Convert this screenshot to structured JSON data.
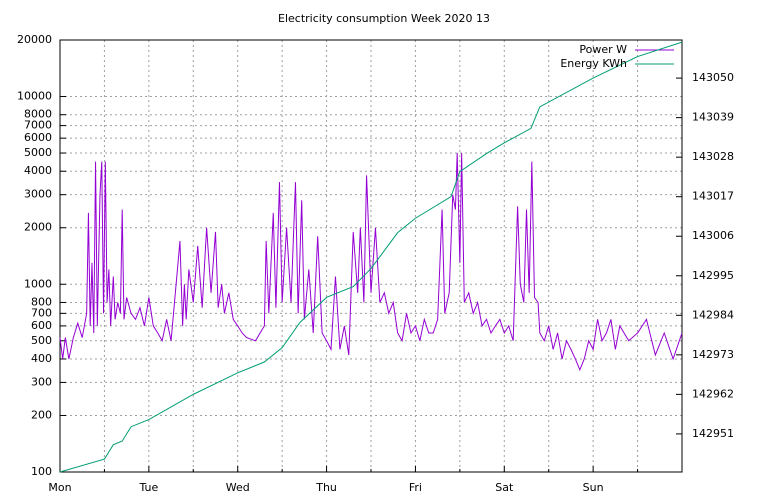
{
  "chart_data": {
    "type": "line",
    "title": "Electricity consumption Week 2020 13",
    "xlim": [
      0,
      7
    ],
    "xticks": [
      {
        "value": 0,
        "label": "Mon"
      },
      {
        "value": 1,
        "label": "Tue"
      },
      {
        "value": 2,
        "label": "Wed"
      },
      {
        "value": 3,
        "label": "Thu"
      },
      {
        "value": 4,
        "label": "Fri"
      },
      {
        "value": 5,
        "label": "Sat"
      },
      {
        "value": 6,
        "label": "Sun"
      }
    ],
    "xminor": 2,
    "ylim": [
      100,
      20000
    ],
    "ylog": true,
    "yticks": [
      100,
      200,
      300,
      400,
      500,
      600,
      700,
      800,
      1000,
      2000,
      3000,
      4000,
      5000,
      6000,
      7000,
      8000,
      10000,
      20000
    ],
    "y2lim": [
      142940.4,
      143060.6
    ],
    "y2ticks": [
      142951,
      142962,
      142973,
      142984,
      142995,
      143006,
      143017,
      143028,
      143039,
      143050
    ],
    "grid": true,
    "legend": "top-right",
    "series": [
      {
        "name": "Power W",
        "color": "#9400d3",
        "x": [
          0,
          0.03,
          0.06,
          0.1,
          0.15,
          0.2,
          0.25,
          0.3,
          0.32,
          0.34,
          0.36,
          0.38,
          0.4,
          0.42,
          0.45,
          0.47,
          0.49,
          0.51,
          0.53,
          0.55,
          0.57,
          0.6,
          0.62,
          0.65,
          0.68,
          0.7,
          0.72,
          0.75,
          0.8,
          0.85,
          0.9,
          0.95,
          1.0,
          1.05,
          1.1,
          1.15,
          1.2,
          1.25,
          1.35,
          1.38,
          1.4,
          1.42,
          1.45,
          1.5,
          1.55,
          1.6,
          1.65,
          1.7,
          1.75,
          1.78,
          1.82,
          1.85,
          1.9,
          1.95,
          2.0,
          2.05,
          2.1,
          2.2,
          2.3,
          2.32,
          2.35,
          2.4,
          2.43,
          2.47,
          2.5,
          2.55,
          2.6,
          2.65,
          2.68,
          2.72,
          2.75,
          2.8,
          2.85,
          2.9,
          2.95,
          3.0,
          3.05,
          3.1,
          3.15,
          3.2,
          3.25,
          3.3,
          3.35,
          3.38,
          3.42,
          3.45,
          3.5,
          3.55,
          3.6,
          3.65,
          3.7,
          3.75,
          3.8,
          3.85,
          3.9,
          3.95,
          4.0,
          4.05,
          4.1,
          4.15,
          4.2,
          4.25,
          4.3,
          4.33,
          4.38,
          4.42,
          4.45,
          4.47,
          4.5,
          4.52,
          4.55,
          4.6,
          4.65,
          4.7,
          4.75,
          4.8,
          4.85,
          4.9,
          4.95,
          5.0,
          5.05,
          5.1,
          5.15,
          5.18,
          5.22,
          5.25,
          5.28,
          5.31,
          5.34,
          5.38,
          5.4,
          5.45,
          5.5,
          5.55,
          5.6,
          5.65,
          5.7,
          5.75,
          5.8,
          5.85,
          5.9,
          5.95,
          6.0,
          6.05,
          6.1,
          6.15,
          6.2,
          6.25,
          6.3,
          6.4,
          6.5,
          6.6,
          6.7,
          6.8,
          6.9,
          7.0
        ],
        "values": [
          520,
          400,
          520,
          400,
          520,
          620,
          520,
          700,
          2400,
          600,
          1300,
          550,
          4500,
          600,
          3000,
          4500,
          700,
          4500,
          800,
          1200,
          600,
          1100,
          650,
          800,
          700,
          2500,
          650,
          850,
          700,
          650,
          750,
          600,
          850,
          600,
          550,
          500,
          650,
          500,
          1700,
          600,
          1000,
          650,
          1200,
          800,
          1600,
          750,
          2000,
          900,
          1900,
          750,
          1000,
          700,
          900,
          650,
          600,
          550,
          520,
          500,
          600,
          1700,
          700,
          2400,
          750,
          3500,
          800,
          2000,
          800,
          3500,
          700,
          2800,
          650,
          1200,
          550,
          1800,
          550,
          500,
          450,
          1100,
          450,
          600,
          420,
          1900,
          900,
          2000,
          800,
          3800,
          900,
          2000,
          800,
          900,
          700,
          800,
          550,
          500,
          700,
          550,
          600,
          500,
          650,
          550,
          550,
          650,
          2500,
          700,
          900,
          3000,
          2500,
          5000,
          1300,
          5000,
          800,
          900,
          700,
          800,
          600,
          650,
          550,
          600,
          650,
          550,
          600,
          500,
          2600,
          1000,
          800,
          2500,
          900,
          4500,
          850,
          800,
          550,
          500,
          600,
          450,
          550,
          400,
          500,
          450,
          400,
          350,
          400,
          500,
          450,
          650,
          500,
          550,
          650,
          450,
          600,
          500,
          550,
          650,
          420,
          550,
          400,
          550
        ]
      },
      {
        "name": "Energy KWh",
        "color": "#009e73",
        "axis": "y2",
        "x": [
          0,
          0.5,
          0.55,
          0.6,
          0.7,
          0.8,
          1,
          1.5,
          2,
          2.3,
          2.5,
          2.7,
          3,
          3.3,
          3.5,
          3.8,
          4,
          4.4,
          4.5,
          4.8,
          5,
          5.3,
          5.4,
          6,
          6.5,
          7
        ],
        "values": [
          142940.4,
          142944,
          142946,
          142948,
          142949,
          142953,
          142955,
          142962,
          142968,
          142971,
          142975,
          142982,
          142989,
          142992,
          142997,
          143007,
          143011,
          143017,
          143024,
          143029,
          143032,
          143036,
          143042,
          143050,
          143056,
          143060
        ]
      }
    ]
  }
}
